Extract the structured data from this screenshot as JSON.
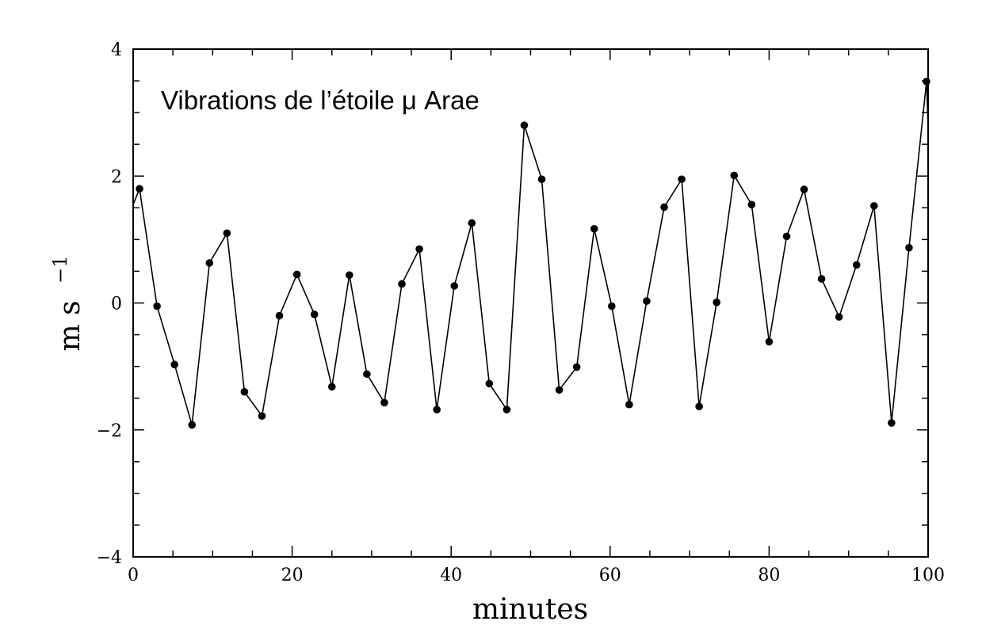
{
  "chart_data": {
    "type": "line",
    "title": "Vibrations de l’étoile μ Arae",
    "xlabel": "minutes",
    "ylabel": "m s",
    "ylabel_superscript": "−1",
    "xlim": [
      0,
      100
    ],
    "ylim": [
      -4,
      4
    ],
    "xticks": [
      0,
      20,
      40,
      60,
      80,
      100
    ],
    "yticks": [
      -4,
      -2,
      0,
      2,
      4
    ],
    "xtick_labels": [
      "0",
      "20",
      "40",
      "60",
      "80",
      "100"
    ],
    "ytick_labels": [
      "−4",
      "−2",
      "0",
      "2",
      "4"
    ],
    "grid": false,
    "series": [
      {
        "marker": "circle",
        "color": "#000000",
        "x": [
          0.8,
          3.0,
          5.2,
          7.4,
          9.6,
          11.8,
          14.0,
          16.2,
          18.4,
          20.6,
          22.8,
          25.0,
          27.2,
          29.4,
          31.6,
          33.8,
          36.0,
          38.2,
          40.4,
          42.6,
          44.8,
          47.0,
          49.2,
          51.4,
          53.6,
          55.8,
          58.0,
          60.2,
          62.4,
          64.6,
          66.8,
          69.0,
          71.2,
          73.4,
          75.6,
          77.8,
          80.0,
          82.2,
          84.4,
          86.6,
          88.8,
          91.0,
          93.2,
          95.4,
          97.6,
          99.8
        ],
        "y": [
          1.8,
          -0.05,
          -0.97,
          -1.92,
          0.63,
          1.1,
          -1.4,
          -1.78,
          -0.2,
          0.45,
          -0.18,
          -1.32,
          0.44,
          -1.12,
          -1.57,
          0.3,
          0.85,
          -1.68,
          0.27,
          1.26,
          -1.27,
          -1.68,
          2.8,
          1.95,
          -1.37,
          -1.01,
          1.17,
          -0.05,
          -1.6,
          0.03,
          1.51,
          1.95,
          -1.63,
          0.01,
          2.01,
          1.55,
          -0.61,
          1.05,
          1.79,
          0.38,
          -0.22,
          0.6,
          1.53,
          -1.89,
          0.87,
          3.49
        ]
      }
    ],
    "line_extends": {
      "left_y": 1.55,
      "right_y": 2.78
    }
  }
}
